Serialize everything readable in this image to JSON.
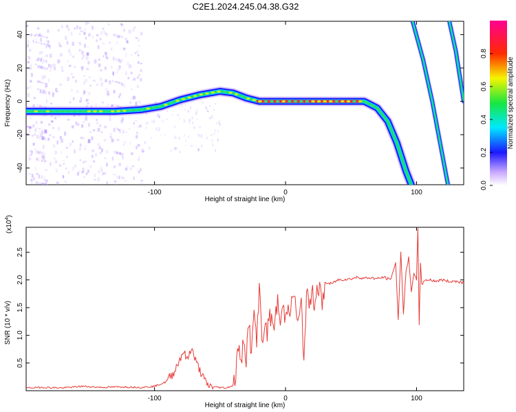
{
  "title": "C2E1.2024.245.04.38.G32",
  "chart_data": [
    {
      "type": "heatmap",
      "xlabel": "Height of straight line (km)",
      "ylabel": "Frequency (Hz)",
      "xlim": [
        -198,
        136
      ],
      "ylim": [
        -50,
        48
      ],
      "x_ticks": [
        -100,
        0,
        100
      ],
      "y_ticks": [
        -40,
        -20,
        0,
        20,
        40
      ],
      "colorbar": {
        "label": "Normalized spectral amplitude",
        "range": [
          0,
          1
        ],
        "ticks": [
          0.0,
          0.2,
          0.4,
          0.6,
          0.8
        ]
      },
      "traces": [
        {
          "points": [
            [
              -198,
              -6
            ],
            [
              -160,
              -6
            ],
            [
              -130,
              -6
            ],
            [
              -110,
              -5
            ],
            [
              -95,
              -3
            ],
            [
              -80,
              1
            ],
            [
              -65,
              4
            ],
            [
              -50,
              6
            ],
            [
              -40,
              5
            ],
            [
              -30,
              2
            ],
            [
              -20,
              0
            ],
            [
              0,
              0
            ],
            [
              30,
              0
            ],
            [
              60,
              0
            ],
            [
              70,
              -4
            ],
            [
              78,
              -12
            ],
            [
              85,
              -25
            ],
            [
              92,
              -42
            ],
            [
              96,
              -50
            ]
          ]
        },
        {
          "points": [
            [
              97,
              48
            ],
            [
              105,
              25
            ],
            [
              112,
              0
            ],
            [
              118,
              -25
            ],
            [
              124,
              -50
            ]
          ]
        },
        {
          "points": [
            [
              125,
              48
            ],
            [
              130,
              30
            ],
            [
              136,
              0
            ]
          ]
        }
      ]
    },
    {
      "type": "line",
      "xlabel": "Height of straight line (km)",
      "ylabel": "SNR (10 * v/v)",
      "y_exponent": "(x10",
      "y_exponent_power": "4",
      "xlim": [
        -198,
        136
      ],
      "ylim": [
        0,
        2.95
      ],
      "x_ticks": [
        -100,
        0,
        100
      ],
      "y_ticks": [
        0.5,
        1.0,
        1.5,
        2.0,
        2.5
      ],
      "color": "#e53935",
      "series": [
        {
          "x": [
            -198,
            -185,
            -170,
            -155,
            -140,
            -125,
            -110,
            -100,
            -92,
            -86,
            -82,
            -78,
            -75,
            -72,
            -68,
            -64,
            -60,
            -55,
            -50,
            -45,
            -40,
            -38,
            -36,
            -34,
            -32,
            -30,
            -28,
            -26,
            -24,
            -22,
            -20,
            -18,
            -16,
            -14,
            -12,
            -10,
            -8,
            -6,
            -4,
            -2,
            0,
            2,
            4,
            6,
            8,
            10,
            12,
            14,
            16,
            18,
            20,
            22,
            24,
            26,
            28,
            30,
            35,
            40,
            45,
            50,
            55,
            60,
            65,
            70,
            75,
            80,
            84,
            86,
            88,
            90,
            92,
            94,
            96,
            98,
            100,
            101,
            102,
            103,
            104,
            106,
            110,
            115,
            120,
            125,
            130,
            136
          ],
          "y": [
            0.05,
            0.06,
            0.05,
            0.08,
            0.06,
            0.07,
            0.06,
            0.08,
            0.15,
            0.3,
            0.5,
            0.72,
            0.55,
            0.78,
            0.5,
            0.3,
            0.1,
            0.07,
            0.06,
            0.05,
            0.1,
            0.3,
            0.85,
            0.4,
            1.0,
            0.6,
            1.3,
            0.6,
            1.5,
            0.8,
            2.0,
            0.9,
            1.2,
            1.0,
            1.45,
            1.1,
            1.3,
            1.6,
            1.2,
            1.5,
            1.3,
            1.65,
            1.4,
            1.8,
            1.45,
            1.2,
            1.6,
            0.55,
            1.75,
            1.5,
            1.8,
            1.6,
            1.85,
            1.9,
            1.45,
            1.95,
            1.93,
            2.0,
            2.01,
            2.02,
            2.05,
            2.03,
            2.04,
            2.02,
            2.05,
            2.0,
            2.3,
            1.3,
            2.5,
            1.4,
            2.15,
            2.4,
            1.8,
            2.1,
            2.0,
            2.95,
            1.2,
            2.3,
            1.9,
            2.0,
            2.0,
            1.98,
            2.0,
            1.97,
            1.98,
            1.95
          ]
        }
      ]
    }
  ]
}
